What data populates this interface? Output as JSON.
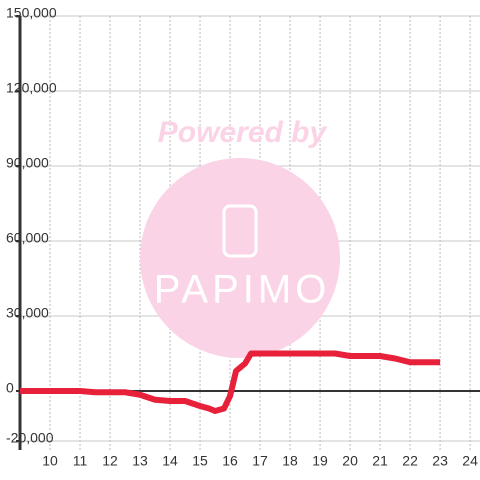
{
  "chart_data": {
    "type": "line",
    "watermark": {
      "top": "Powered by",
      "brand": "PAPIMO"
    },
    "xlim": [
      9,
      24.33
    ],
    "xticks": [
      10,
      11,
      12,
      13,
      14,
      15,
      16,
      17,
      18,
      19,
      20,
      21,
      22,
      23,
      24
    ],
    "ylim": [
      -23600,
      150000
    ],
    "yticks": [
      {
        "value": -20000,
        "label": "-20,000"
      },
      0,
      {
        "value": 30000,
        "label": "30,000"
      },
      {
        "value": 60000,
        "label": "60,000"
      },
      {
        "value": 90000,
        "label": "90,000"
      },
      {
        "value": 120000,
        "label": "120,000"
      },
      {
        "value": 150000,
        "label": "150,000"
      }
    ],
    "grid": true,
    "series": [
      {
        "color": "#e8213a",
        "x": [
          9,
          11,
          11.5,
          12.5,
          13,
          13.5,
          14,
          14.5,
          15,
          15.3,
          15.5,
          15.8,
          16,
          16.2,
          16.5,
          16.7,
          17,
          19.5,
          20,
          21,
          21.5,
          22,
          23
        ],
        "values": [
          0,
          0,
          -500,
          -500,
          -1500,
          -3500,
          -4000,
          -4000,
          -6000,
          -7000,
          -8000,
          -7000,
          -2000,
          8000,
          11000,
          15000,
          15000,
          15000,
          14000,
          14000,
          13000,
          11500,
          11500
        ]
      }
    ]
  }
}
